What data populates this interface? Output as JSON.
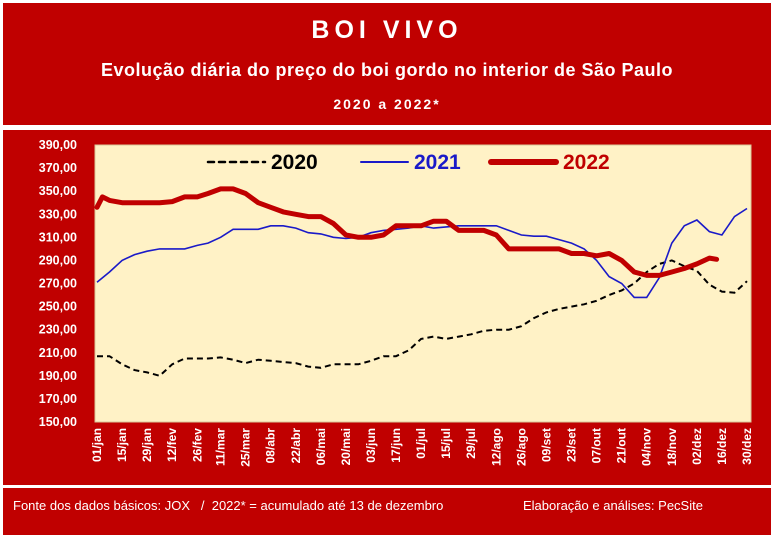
{
  "header": {
    "title": "BOI VIVO",
    "subtitle": "Evolução diária do preço do boi gordo no interior de São Paulo",
    "period": "2020 a 2022*"
  },
  "footer": {
    "source": "Fonte dos dados básicos: JOX   /  2022* = acumulado até 13 de dezembro",
    "credit": "Elaboração e análises: PecSite"
  },
  "colors": {
    "frame": "#c00000",
    "plot_bg": "#fff2c6",
    "series_2020": "#000000",
    "series_2021": "#1a1ac8",
    "series_2022": "#c00000"
  },
  "chart_data": {
    "type": "line",
    "title": "BOI VIVO",
    "x_tick_labels": [
      "01/jan",
      "15/jan",
      "29/jan",
      "12/fev",
      "26/fev",
      "11/mar",
      "25/mar",
      "08/abr",
      "22/abr",
      "06/mai",
      "20/mai",
      "03/jun",
      "17/jun",
      "01/jul",
      "15/jul",
      "29/jul",
      "12/ago",
      "26/ago",
      "09/set",
      "23/set",
      "07/out",
      "21/out",
      "04/nov",
      "18/nov",
      "02/dez",
      "16/dez",
      "30/dez"
    ],
    "ylim": [
      150,
      390
    ],
    "y_ticks": [
      "390,00",
      "370,00",
      "350,00",
      "330,00",
      "310,00",
      "290,00",
      "270,00",
      "250,00",
      "230,00",
      "210,00",
      "190,00",
      "170,00",
      "150,00"
    ],
    "legend_position": "top",
    "grid": false,
    "series": [
      {
        "name": "2020",
        "style": "dashed",
        "x": [
          "01/jan",
          "08/jan",
          "15/jan",
          "22/jan",
          "29/jan",
          "05/fev",
          "12/fev",
          "19/fev",
          "26/fev",
          "04/mar",
          "11/mar",
          "18/mar",
          "25/mar",
          "01/abr",
          "08/abr",
          "15/abr",
          "22/abr",
          "29/abr",
          "06/mai",
          "13/mai",
          "20/mai",
          "27/mai",
          "03/jun",
          "10/jun",
          "17/jun",
          "24/jun",
          "01/jul",
          "08/jul",
          "15/jul",
          "22/jul",
          "29/jul",
          "05/ago",
          "12/ago",
          "19/ago",
          "26/ago",
          "02/set",
          "09/set",
          "16/set",
          "23/set",
          "30/set",
          "07/out",
          "14/out",
          "21/out",
          "28/out",
          "04/nov",
          "11/nov",
          "18/nov",
          "25/nov",
          "02/dez",
          "09/dez",
          "16/dez",
          "23/dez",
          "30/dez"
        ],
        "values": [
          207,
          207,
          200,
          195,
          193,
          190,
          200,
          205,
          205,
          205,
          206,
          204,
          201,
          204,
          203,
          202,
          201,
          198,
          197,
          200,
          200,
          200,
          203,
          207,
          207,
          212,
          222,
          224,
          222,
          224,
          226,
          229,
          230,
          230,
          233,
          240,
          245,
          248,
          250,
          252,
          255,
          260,
          264,
          270,
          280,
          287,
          290,
          285,
          281,
          269,
          263,
          262,
          272
        ]
      },
      {
        "name": "2021",
        "style": "solid",
        "x": [
          "01/jan",
          "08/jan",
          "15/jan",
          "22/jan",
          "29/jan",
          "05/fev",
          "12/fev",
          "19/fev",
          "26/fev",
          "04/mar",
          "11/mar",
          "18/mar",
          "25/mar",
          "01/abr",
          "08/abr",
          "15/abr",
          "22/abr",
          "29/abr",
          "06/mai",
          "13/mai",
          "20/mai",
          "27/mai",
          "03/jun",
          "10/jun",
          "17/jun",
          "24/jun",
          "01/jul",
          "08/jul",
          "15/jul",
          "22/jul",
          "29/jul",
          "05/ago",
          "12/ago",
          "19/ago",
          "26/ago",
          "02/set",
          "09/set",
          "16/set",
          "23/set",
          "30/set",
          "07/out",
          "14/out",
          "21/out",
          "28/out",
          "04/nov",
          "11/nov",
          "18/nov",
          "25/nov",
          "02/dez",
          "09/dez",
          "16/dez",
          "23/dez",
          "30/dez"
        ],
        "values": [
          271,
          280,
          290,
          295,
          298,
          300,
          300,
          300,
          303,
          305,
          310,
          317,
          317,
          317,
          320,
          320,
          318,
          314,
          313,
          310,
          309,
          310,
          314,
          316,
          317,
          318,
          320,
          318,
          319,
          320,
          320,
          320,
          320,
          316,
          312,
          311,
          311,
          308,
          305,
          300,
          290,
          276,
          270,
          258,
          258,
          275,
          305,
          320,
          325,
          315,
          312,
          328,
          335
        ]
      },
      {
        "name": "2022",
        "style": "solid-thick",
        "x": [
          "01/jan",
          "04/jan",
          "08/jan",
          "15/jan",
          "22/jan",
          "29/jan",
          "05/fev",
          "12/fev",
          "19/fev",
          "26/fev",
          "04/mar",
          "11/mar",
          "18/mar",
          "25/mar",
          "01/abr",
          "08/abr",
          "15/abr",
          "22/abr",
          "29/abr",
          "06/mai",
          "13/mai",
          "20/mai",
          "27/mai",
          "03/jun",
          "10/jun",
          "17/jun",
          "24/jun",
          "01/jul",
          "08/jul",
          "15/jul",
          "22/jul",
          "29/jul",
          "05/ago",
          "12/ago",
          "19/ago",
          "26/ago",
          "02/set",
          "09/set",
          "16/set",
          "23/set",
          "30/set",
          "07/out",
          "14/out",
          "21/out",
          "28/out",
          "04/nov",
          "11/nov",
          "18/nov",
          "25/nov",
          "02/dez",
          "09/dez",
          "13/dez"
        ],
        "values": [
          336,
          345,
          342,
          340,
          340,
          340,
          340,
          341,
          345,
          345,
          348,
          352,
          352,
          348,
          340,
          336,
          332,
          330,
          328,
          328,
          322,
          312,
          310,
          310,
          312,
          320,
          320,
          320,
          324,
          324,
          316,
          316,
          316,
          312,
          300,
          300,
          300,
          300,
          300,
          296,
          296,
          294,
          296,
          290,
          280,
          277,
          277,
          280,
          283,
          287,
          292,
          291
        ]
      }
    ]
  }
}
